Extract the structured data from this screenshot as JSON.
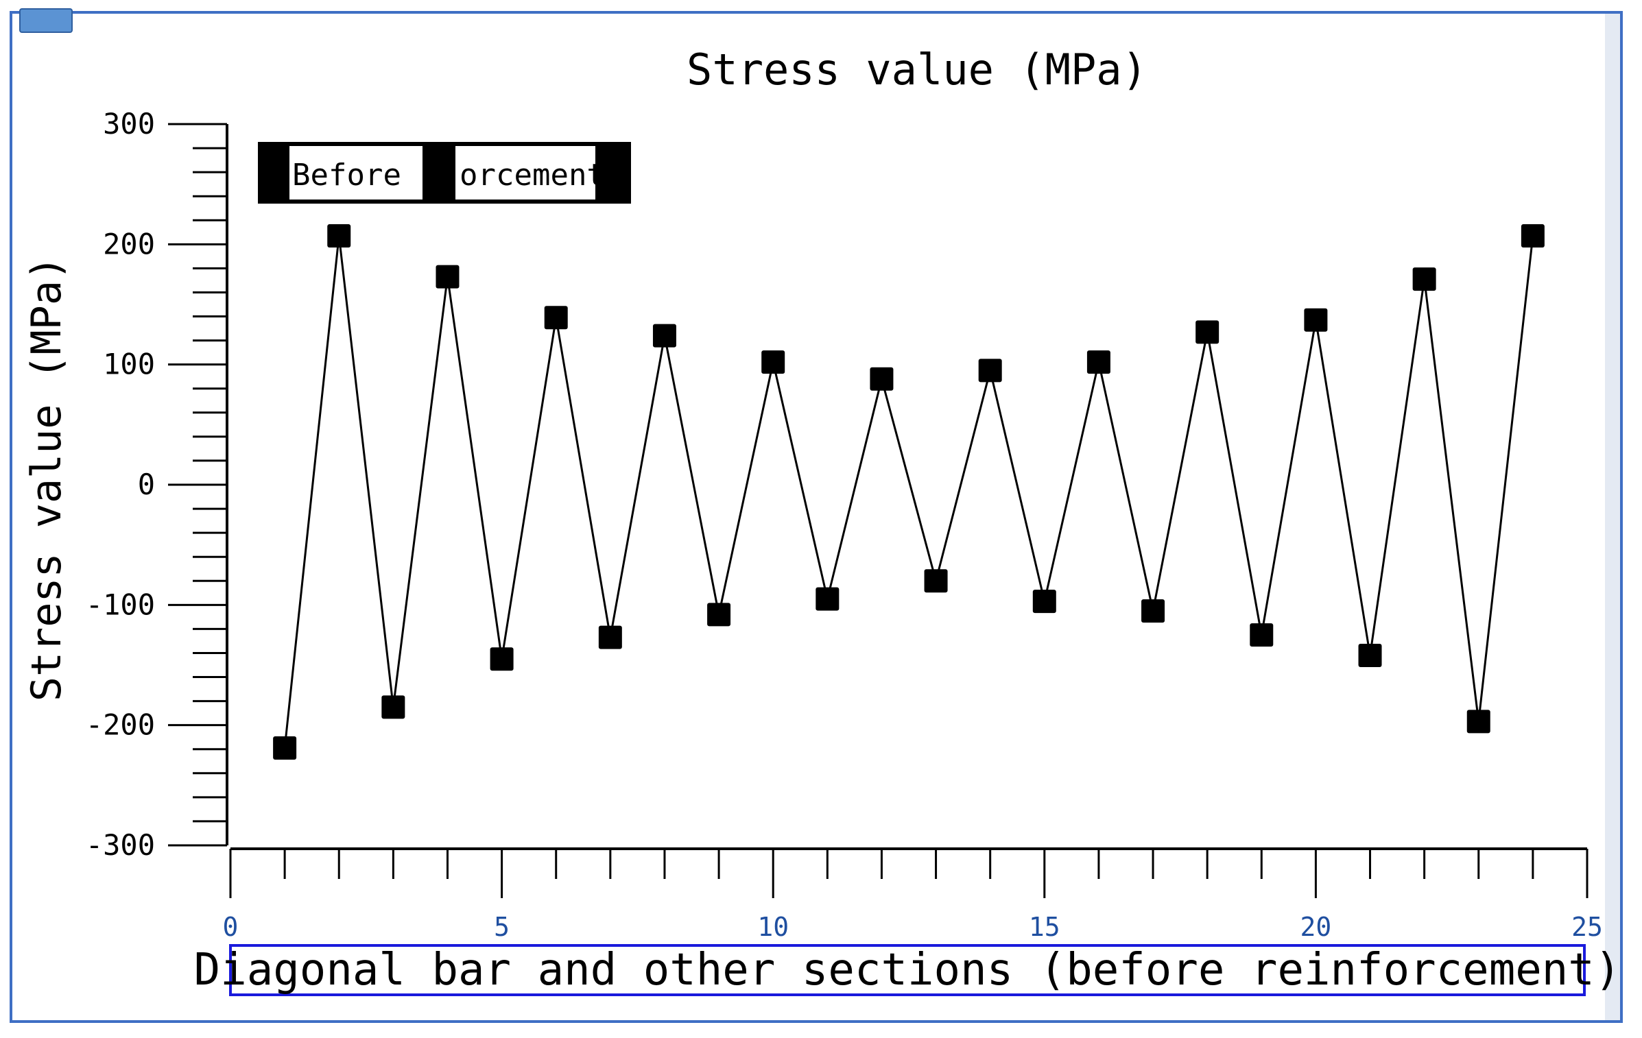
{
  "colors": {
    "frame_border": "#3f6fc4",
    "series": "#000000",
    "xlabel_box_border": "#1a1adc",
    "xtick_label": "#1f4fa0"
  },
  "chart_data": {
    "type": "line",
    "title": "Stress value (MPa)",
    "ylabel": "Stress value (MPa)",
    "xlabel": "Diagonal bar and other sections (before reinforcement)",
    "legend": {
      "text_left": "Before re",
      "text_right": "orcement",
      "placement": "top-left"
    },
    "xlim": [
      0,
      25
    ],
    "ylim": [
      -300,
      300
    ],
    "xticks": [
      0,
      5,
      10,
      15,
      20,
      25
    ],
    "xtick_labels": [
      "0",
      "5",
      "10",
      "15",
      "20",
      "25"
    ],
    "yticks": [
      300,
      200,
      100,
      0,
      -100,
      -200,
      -300
    ],
    "ytick_labels": [
      "300",
      "200",
      "100",
      "0",
      "-100",
      "-200",
      "-300"
    ],
    "grid": false,
    "marker": "square",
    "series": [
      {
        "x": [
          1,
          2,
          3,
          4,
          5,
          6,
          7,
          8,
          9,
          10,
          11,
          12,
          13,
          14,
          15,
          16,
          17,
          18,
          19,
          20,
          21,
          22,
          23,
          24
        ],
        "values": [
          -219,
          207,
          -185,
          173,
          -145,
          139,
          -127,
          124,
          -108,
          102,
          -95,
          88,
          -80,
          95,
          -97,
          102,
          -105,
          127,
          -125,
          137,
          -142,
          171,
          -197,
          207
        ]
      }
    ]
  }
}
